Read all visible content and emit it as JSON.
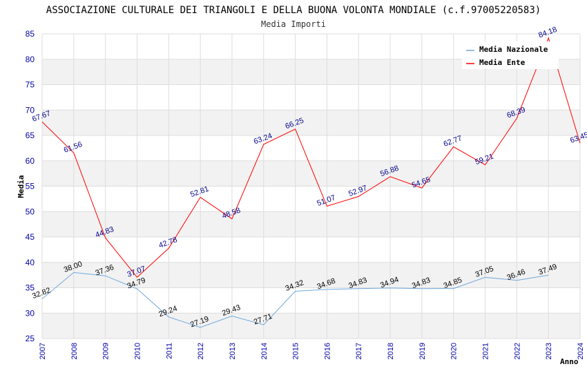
{
  "chart_data": {
    "type": "line",
    "title": "ASSOCIAZIONE CULTURALE DEI TRIANGOLI E DELLA BUONA VOLONTA MONDIALE (c.f.97005220583)",
    "subtitle": "Media Importi",
    "xlabel": "Anno",
    "ylabel": "Media",
    "ylim": [
      25,
      85
    ],
    "yticks": [
      25,
      30,
      35,
      40,
      45,
      50,
      55,
      60,
      65,
      70,
      75,
      80,
      85
    ],
    "xlim": [
      2007,
      2024
    ],
    "x": [
      2007,
      2008,
      2009,
      2010,
      2011,
      2012,
      2013,
      2014,
      2015,
      2016,
      2017,
      2018,
      2019,
      2020,
      2021,
      2022,
      2023,
      2024
    ],
    "legend_position": "top-right",
    "grid": true,
    "series": [
      {
        "name": "Media Nazionale",
        "color": "#6fa8dc",
        "label_color": "#000000",
        "x": [
          2007,
          2008,
          2009,
          2010,
          2011,
          2012,
          2013,
          2014,
          2015,
          2016,
          2017,
          2018,
          2019,
          2020,
          2021,
          2022,
          2023
        ],
        "values": [
          32.82,
          38.0,
          37.36,
          34.79,
          29.24,
          27.19,
          29.43,
          27.71,
          34.32,
          34.68,
          34.83,
          34.94,
          34.83,
          34.85,
          37.05,
          36.46,
          37.49
        ],
        "labels": [
          "32.82",
          "38.00",
          "37.36",
          "34.79",
          "29.24",
          "27.19",
          "29.43",
          "27.71",
          "34.32",
          "34.68",
          "34.83",
          "34.94",
          "34.83",
          "34.85",
          "37.05",
          "36.46",
          "37.49"
        ]
      },
      {
        "name": "Media Ente",
        "color": "#ff0000",
        "label_color": "#00008b",
        "x": [
          2007,
          2008,
          2009,
          2010,
          2011,
          2012,
          2013,
          2014,
          2015,
          2016,
          2017,
          2018,
          2019,
          2020,
          2021,
          2022,
          2023,
          2024
        ],
        "values": [
          67.67,
          61.56,
          44.83,
          37.07,
          42.78,
          52.81,
          48.58,
          63.24,
          66.25,
          51.07,
          52.97,
          56.88,
          54.65,
          62.77,
          59.21,
          68.39,
          84.18,
          63.45
        ],
        "labels": [
          "67.67",
          "61.56",
          "44.83",
          "37.07",
          "42.78",
          "52.81",
          "48.58",
          "63.24",
          "66.25",
          "51.07",
          "52.97",
          "56.88",
          "54.65",
          "62.77",
          "59.21",
          "68.39",
          "84.18",
          "63.45"
        ]
      }
    ]
  }
}
